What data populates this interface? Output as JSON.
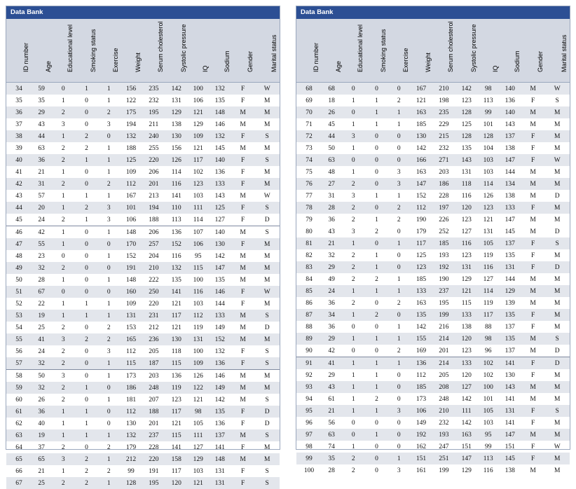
{
  "title": "Data Bank",
  "columns": [
    "ID number",
    "Age",
    "Educational level",
    "Smoking status",
    "Exercise",
    "Weight",
    "Serum cholesterol",
    "Systolic pressure",
    "IQ",
    "Sodium",
    "Gender",
    "Marital status"
  ],
  "left_rows": [
    [
      "34",
      "59",
      "0",
      "1",
      "1",
      "156",
      "235",
      "142",
      "100",
      "132",
      "F",
      "W"
    ],
    [
      "35",
      "35",
      "1",
      "0",
      "1",
      "122",
      "232",
      "131",
      "106",
      "135",
      "F",
      "M"
    ],
    [
      "36",
      "29",
      "2",
      "0",
      "2",
      "175",
      "195",
      "129",
      "121",
      "148",
      "M",
      "M"
    ],
    [
      "37",
      "43",
      "3",
      "0",
      "3",
      "194",
      "211",
      "138",
      "129",
      "146",
      "M",
      "M"
    ],
    [
      "38",
      "44",
      "1",
      "2",
      "0",
      "132",
      "240",
      "130",
      "109",
      "132",
      "F",
      "S"
    ],
    [
      "39",
      "63",
      "2",
      "2",
      "1",
      "188",
      "255",
      "156",
      "121",
      "145",
      "M",
      "M"
    ],
    [
      "40",
      "36",
      "2",
      "1",
      "1",
      "125",
      "220",
      "126",
      "117",
      "140",
      "F",
      "S"
    ],
    [
      "41",
      "21",
      "1",
      "0",
      "1",
      "109",
      "206",
      "114",
      "102",
      "136",
      "F",
      "M"
    ],
    [
      "42",
      "31",
      "2",
      "0",
      "2",
      "112",
      "201",
      "116",
      "123",
      "133",
      "F",
      "M"
    ],
    [
      "43",
      "57",
      "1",
      "1",
      "1",
      "167",
      "213",
      "141",
      "103",
      "143",
      "M",
      "W"
    ],
    [
      "44",
      "20",
      "1",
      "2",
      "3",
      "101",
      "194",
      "110",
      "111",
      "125",
      "F",
      "S"
    ],
    [
      "45",
      "24",
      "2",
      "1",
      "3",
      "106",
      "188",
      "113",
      "114",
      "127",
      "F",
      "D"
    ],
    [
      "46",
      "42",
      "1",
      "0",
      "1",
      "148",
      "206",
      "136",
      "107",
      "140",
      "M",
      "S"
    ],
    [
      "47",
      "55",
      "1",
      "0",
      "0",
      "170",
      "257",
      "152",
      "106",
      "130",
      "F",
      "M"
    ],
    [
      "48",
      "23",
      "0",
      "0",
      "1",
      "152",
      "204",
      "116",
      "95",
      "142",
      "M",
      "M"
    ],
    [
      "49",
      "32",
      "2",
      "0",
      "0",
      "191",
      "210",
      "132",
      "115",
      "147",
      "M",
      "M"
    ],
    [
      "50",
      "28",
      "1",
      "0",
      "1",
      "148",
      "222",
      "135",
      "100",
      "135",
      "M",
      "M"
    ],
    [
      "51",
      "67",
      "0",
      "0",
      "0",
      "160",
      "250",
      "141",
      "116",
      "146",
      "F",
      "W"
    ],
    [
      "52",
      "22",
      "1",
      "1",
      "1",
      "109",
      "220",
      "121",
      "103",
      "144",
      "F",
      "M"
    ],
    [
      "53",
      "19",
      "1",
      "1",
      "1",
      "131",
      "231",
      "117",
      "112",
      "133",
      "M",
      "S"
    ],
    [
      "54",
      "25",
      "2",
      "0",
      "2",
      "153",
      "212",
      "121",
      "119",
      "149",
      "M",
      "D"
    ],
    [
      "55",
      "41",
      "3",
      "2",
      "2",
      "165",
      "236",
      "130",
      "131",
      "152",
      "M",
      "M"
    ],
    [
      "56",
      "24",
      "2",
      "0",
      "3",
      "112",
      "205",
      "118",
      "100",
      "132",
      "F",
      "S"
    ],
    [
      "57",
      "32",
      "2",
      "0",
      "1",
      "115",
      "187",
      "115",
      "109",
      "136",
      "F",
      "S"
    ],
    [
      "58",
      "50",
      "3",
      "0",
      "1",
      "173",
      "203",
      "136",
      "126",
      "146",
      "M",
      "M"
    ],
    [
      "59",
      "32",
      "2",
      "1",
      "0",
      "186",
      "248",
      "119",
      "122",
      "149",
      "M",
      "M"
    ],
    [
      "60",
      "26",
      "2",
      "0",
      "1",
      "181",
      "207",
      "123",
      "121",
      "142",
      "M",
      "S"
    ],
    [
      "61",
      "36",
      "1",
      "1",
      "0",
      "112",
      "188",
      "117",
      "98",
      "135",
      "F",
      "D"
    ],
    [
      "62",
      "40",
      "1",
      "1",
      "0",
      "130",
      "201",
      "121",
      "105",
      "136",
      "F",
      "D"
    ],
    [
      "63",
      "19",
      "1",
      "1",
      "1",
      "132",
      "237",
      "115",
      "111",
      "137",
      "M",
      "S"
    ],
    [
      "64",
      "37",
      "2",
      "0",
      "2",
      "179",
      "228",
      "141",
      "127",
      "141",
      "F",
      "M"
    ],
    [
      "65",
      "65",
      "3",
      "2",
      "1",
      "212",
      "220",
      "158",
      "129",
      "148",
      "M",
      "M"
    ],
    [
      "66",
      "21",
      "1",
      "2",
      "2",
      "99",
      "191",
      "117",
      "103",
      "131",
      "F",
      "S"
    ],
    [
      "67",
      "25",
      "2",
      "2",
      "1",
      "128",
      "195",
      "120",
      "121",
      "131",
      "F",
      "S"
    ]
  ],
  "right_rows": [
    [
      "68",
      "68",
      "0",
      "0",
      "0",
      "167",
      "210",
      "142",
      "98",
      "140",
      "M",
      "W"
    ],
    [
      "69",
      "18",
      "1",
      "1",
      "2",
      "121",
      "198",
      "123",
      "113",
      "136",
      "F",
      "S"
    ],
    [
      "70",
      "26",
      "0",
      "1",
      "1",
      "163",
      "235",
      "128",
      "99",
      "140",
      "M",
      "M"
    ],
    [
      "71",
      "45",
      "1",
      "1",
      "1",
      "185",
      "229",
      "125",
      "101",
      "143",
      "M",
      "M"
    ],
    [
      "72",
      "44",
      "3",
      "0",
      "0",
      "130",
      "215",
      "128",
      "128",
      "137",
      "F",
      "M"
    ],
    [
      "73",
      "50",
      "1",
      "0",
      "0",
      "142",
      "232",
      "135",
      "104",
      "138",
      "F",
      "M"
    ],
    [
      "74",
      "63",
      "0",
      "0",
      "0",
      "166",
      "271",
      "143",
      "103",
      "147",
      "F",
      "W"
    ],
    [
      "75",
      "48",
      "1",
      "0",
      "3",
      "163",
      "203",
      "131",
      "103",
      "144",
      "M",
      "M"
    ],
    [
      "76",
      "27",
      "2",
      "0",
      "3",
      "147",
      "186",
      "118",
      "114",
      "134",
      "M",
      "M"
    ],
    [
      "77",
      "31",
      "3",
      "1",
      "1",
      "152",
      "228",
      "116",
      "126",
      "138",
      "M",
      "D"
    ],
    [
      "78",
      "28",
      "2",
      "0",
      "2",
      "112",
      "197",
      "120",
      "123",
      "133",
      "F",
      "M"
    ],
    [
      "79",
      "36",
      "2",
      "1",
      "2",
      "190",
      "226",
      "123",
      "121",
      "147",
      "M",
      "M"
    ],
    [
      "80",
      "43",
      "3",
      "2",
      "0",
      "179",
      "252",
      "127",
      "131",
      "145",
      "M",
      "D"
    ],
    [
      "81",
      "21",
      "1",
      "0",
      "1",
      "117",
      "185",
      "116",
      "105",
      "137",
      "F",
      "S"
    ],
    [
      "82",
      "32",
      "2",
      "1",
      "0",
      "125",
      "193",
      "123",
      "119",
      "135",
      "F",
      "M"
    ],
    [
      "83",
      "29",
      "2",
      "1",
      "0",
      "123",
      "192",
      "131",
      "116",
      "131",
      "F",
      "D"
    ],
    [
      "84",
      "49",
      "2",
      "2",
      "1",
      "185",
      "190",
      "129",
      "127",
      "144",
      "M",
      "M"
    ],
    [
      "85",
      "24",
      "1",
      "1",
      "1",
      "133",
      "237",
      "121",
      "114",
      "129",
      "M",
      "M"
    ],
    [
      "86",
      "36",
      "2",
      "0",
      "2",
      "163",
      "195",
      "115",
      "119",
      "139",
      "M",
      "M"
    ],
    [
      "87",
      "34",
      "1",
      "2",
      "0",
      "135",
      "199",
      "133",
      "117",
      "135",
      "F",
      "M"
    ],
    [
      "88",
      "36",
      "0",
      "0",
      "1",
      "142",
      "216",
      "138",
      "88",
      "137",
      "F",
      "M"
    ],
    [
      "89",
      "29",
      "1",
      "1",
      "1",
      "155",
      "214",
      "120",
      "98",
      "135",
      "M",
      "S"
    ],
    [
      "90",
      "42",
      "0",
      "0",
      "2",
      "169",
      "201",
      "123",
      "96",
      "137",
      "M",
      "D"
    ],
    [
      "91",
      "41",
      "1",
      "1",
      "1",
      "136",
      "214",
      "133",
      "102",
      "141",
      "F",
      "D"
    ],
    [
      "92",
      "29",
      "1",
      "1",
      "0",
      "112",
      "205",
      "120",
      "102",
      "130",
      "F",
      "M"
    ],
    [
      "93",
      "43",
      "1",
      "1",
      "0",
      "185",
      "208",
      "127",
      "100",
      "143",
      "M",
      "M"
    ],
    [
      "94",
      "61",
      "1",
      "2",
      "0",
      "173",
      "248",
      "142",
      "101",
      "141",
      "M",
      "M"
    ],
    [
      "95",
      "21",
      "1",
      "1",
      "3",
      "106",
      "210",
      "111",
      "105",
      "131",
      "F",
      "S"
    ],
    [
      "96",
      "56",
      "0",
      "0",
      "0",
      "149",
      "232",
      "142",
      "103",
      "141",
      "F",
      "M"
    ],
    [
      "97",
      "63",
      "0",
      "1",
      "0",
      "192",
      "193",
      "163",
      "95",
      "147",
      "M",
      "M"
    ],
    [
      "98",
      "74",
      "1",
      "0",
      "0",
      "162",
      "247",
      "151",
      "99",
      "151",
      "F",
      "W"
    ],
    [
      "99",
      "35",
      "2",
      "0",
      "1",
      "151",
      "251",
      "147",
      "113",
      "145",
      "F",
      "M"
    ],
    [
      "100",
      "28",
      "2",
      "0",
      "3",
      "161",
      "199",
      "129",
      "116",
      "138",
      "M",
      "M"
    ]
  ]
}
